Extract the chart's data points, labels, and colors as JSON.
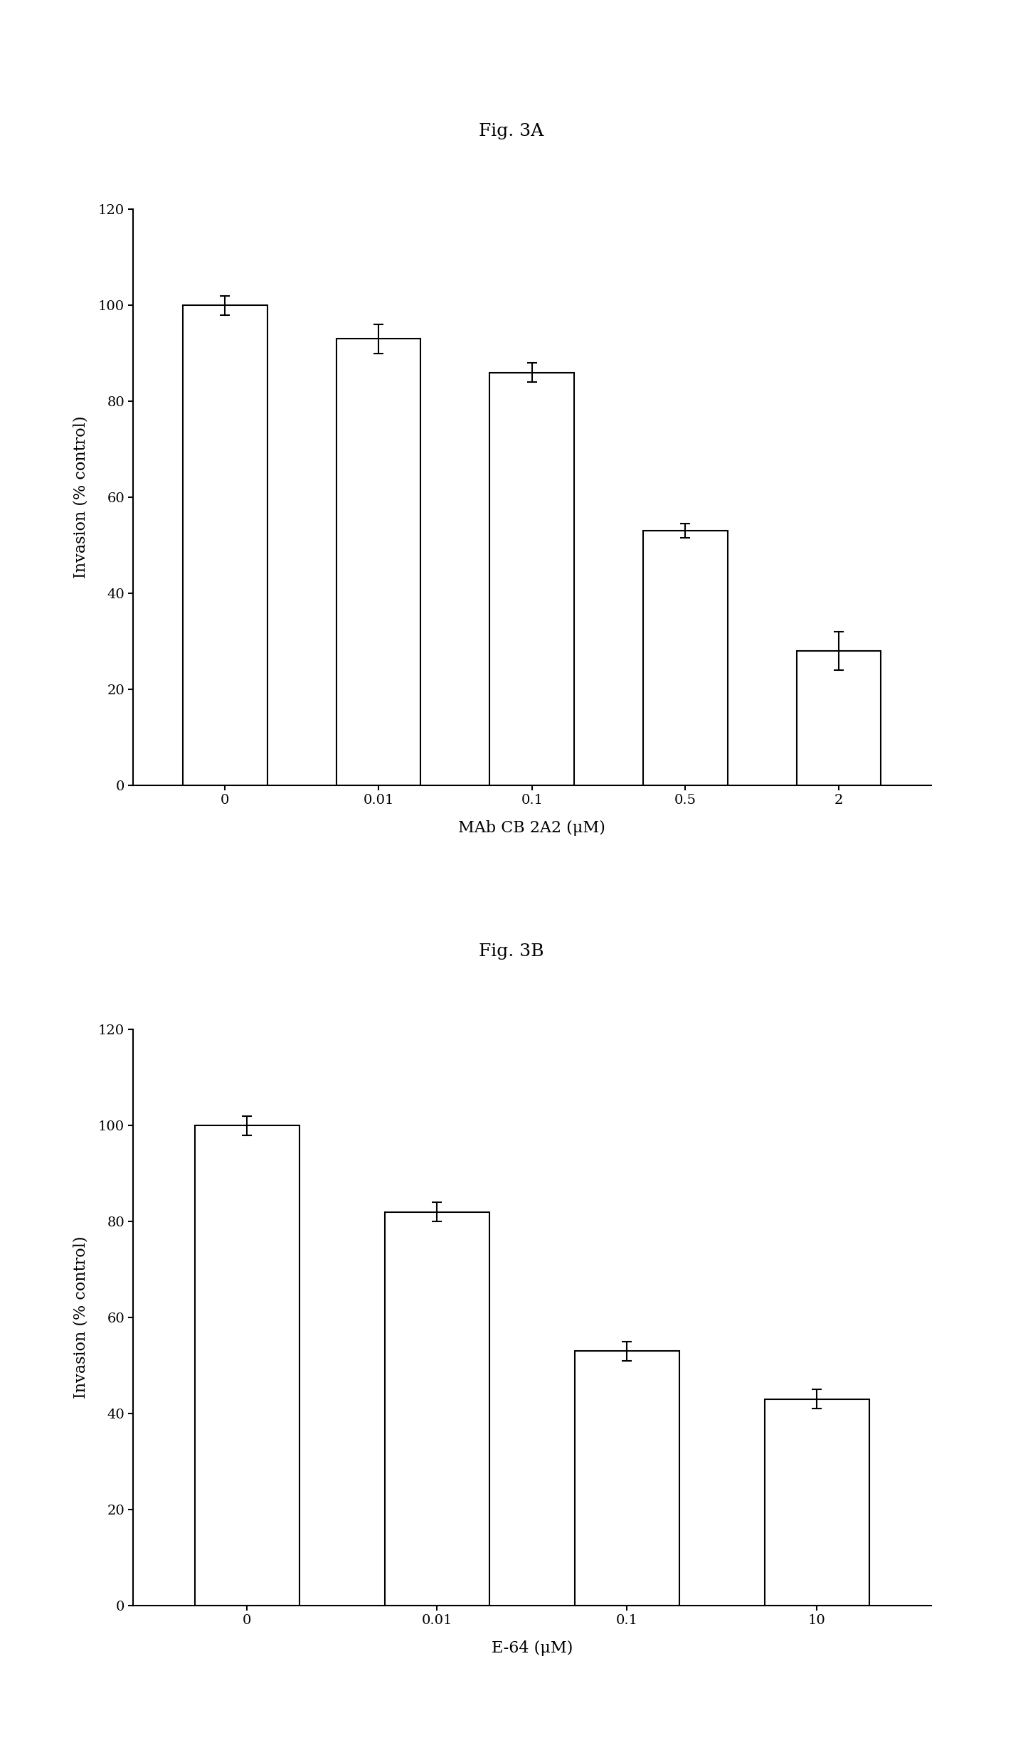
{
  "fig3a": {
    "title": "Fig. 3A",
    "categories": [
      "0",
      "0.01",
      "0.1",
      "0.5",
      "2"
    ],
    "values": [
      100,
      93,
      86,
      53,
      28
    ],
    "errors": [
      2,
      3,
      2,
      1.5,
      4
    ],
    "xlabel": "MAb CB 2A2 (μM)",
    "ylabel": "Invasion (% control)",
    "ylim": [
      0,
      120
    ],
    "yticks": [
      0,
      20,
      40,
      60,
      80,
      100,
      120
    ]
  },
  "fig3b": {
    "title": "Fig. 3B",
    "categories": [
      "0",
      "0.01",
      "0.1",
      "10"
    ],
    "values": [
      100,
      82,
      53,
      43
    ],
    "errors": [
      2,
      2,
      2,
      2
    ],
    "xlabel": "E-64 (μM)",
    "ylabel": "Invasion (% control)",
    "ylim": [
      0,
      120
    ],
    "yticks": [
      0,
      20,
      40,
      60,
      80,
      100,
      120
    ]
  },
  "bar_color": "white",
  "bar_edgecolor": "black",
  "bar_linewidth": 1.5,
  "bar_width": 0.55,
  "title_fontsize": 18,
  "label_fontsize": 16,
  "tick_fontsize": 14,
  "fig_width": 14.38,
  "fig_height": 24.53,
  "background_color": "white",
  "errorbar_color": "black",
  "errorbar_linewidth": 1.5,
  "errorbar_capsize": 5,
  "errorbar_capthick": 1.5
}
